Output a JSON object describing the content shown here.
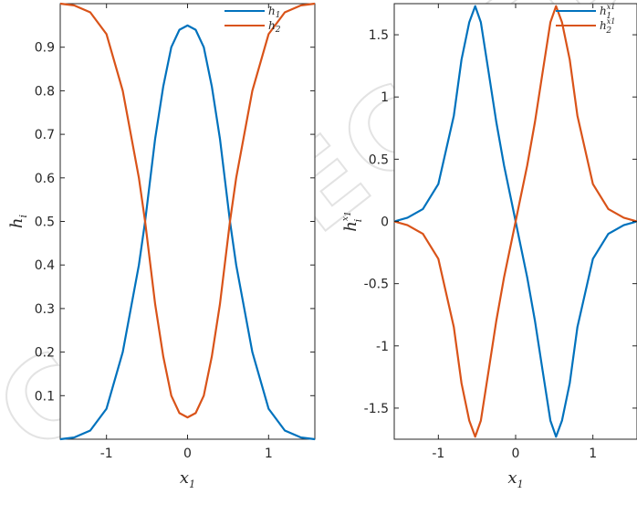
{
  "watermark": "CORRECTED",
  "colors": {
    "h1": "#0072BD",
    "h2": "#D95319",
    "axes": "#262626"
  },
  "chart_data": [
    {
      "type": "line",
      "title": "",
      "xlabel": {
        "base": "x",
        "sub": "1"
      },
      "ylabel": {
        "base": "h",
        "sub": "i"
      },
      "xlim": [
        -1.5708,
        1.5708
      ],
      "ylim": [
        0,
        1
      ],
      "xticks": [
        {
          "value": -1,
          "label": "-1"
        },
        {
          "value": 0,
          "label": "0"
        },
        {
          "value": 1,
          "label": "1"
        }
      ],
      "yticks": [
        {
          "value": 0.1,
          "label": "0.1"
        },
        {
          "value": 0.2,
          "label": "0.2"
        },
        {
          "value": 0.3,
          "label": "0.3"
        },
        {
          "value": 0.4,
          "label": "0.4"
        },
        {
          "value": 0.5,
          "label": "0.5"
        },
        {
          "value": 0.6,
          "label": "0.6"
        },
        {
          "value": 0.7,
          "label": "0.7"
        },
        {
          "value": 0.8,
          "label": "0.8"
        },
        {
          "value": 0.9,
          "label": "0.9"
        }
      ],
      "grid": false,
      "legend": "top-right",
      "x": [
        -1.5708,
        -1.4,
        -1.2,
        -1.0,
        -0.8,
        -0.6,
        -0.5236,
        -0.4,
        -0.3,
        -0.2,
        -0.1,
        0.0,
        0.1,
        0.2,
        0.3,
        0.4,
        0.5236,
        0.6,
        0.8,
        1.0,
        1.2,
        1.4,
        1.5708
      ],
      "series": [
        {
          "name": "h",
          "sub": "1",
          "sup": "",
          "color": "#0072BD",
          "values": [
            0.0,
            0.004,
            0.02,
            0.07,
            0.2,
            0.4,
            0.5,
            0.69,
            0.81,
            0.9,
            0.94,
            0.95,
            0.94,
            0.9,
            0.81,
            0.69,
            0.5,
            0.4,
            0.2,
            0.07,
            0.02,
            0.004,
            0.0
          ]
        },
        {
          "name": "h",
          "sub": "2",
          "sup": "",
          "color": "#D95319",
          "values": [
            1.0,
            0.996,
            0.98,
            0.93,
            0.8,
            0.6,
            0.5,
            0.31,
            0.19,
            0.1,
            0.06,
            0.05,
            0.06,
            0.1,
            0.19,
            0.31,
            0.5,
            0.6,
            0.8,
            0.93,
            0.98,
            0.996,
            1.0
          ]
        }
      ]
    },
    {
      "type": "line",
      "title": "",
      "xlabel": {
        "base": "x",
        "sub": "1"
      },
      "ylabel": {
        "base": "h",
        "sub": "i",
        "sup": "x",
        "supsub": "1"
      },
      "xlim": [
        -1.5708,
        1.5708
      ],
      "ylim": [
        -1.75,
        1.75
      ],
      "xticks": [
        {
          "value": -1,
          "label": "-1"
        },
        {
          "value": 0,
          "label": "0"
        },
        {
          "value": 1,
          "label": "1"
        }
      ],
      "yticks": [
        {
          "value": -1.5,
          "label": "-1.5"
        },
        {
          "value": -1,
          "label": "-1"
        },
        {
          "value": -0.5,
          "label": "-0.5"
        },
        {
          "value": 0,
          "label": "0"
        },
        {
          "value": 0.5,
          "label": "0.5"
        },
        {
          "value": 1,
          "label": "1"
        },
        {
          "value": 1.5,
          "label": "1.5"
        }
      ],
      "grid": false,
      "legend": "top-right",
      "x": [
        -1.5708,
        -1.4,
        -1.2,
        -1.0,
        -0.8,
        -0.7,
        -0.6,
        -0.5236,
        -0.45,
        -0.35,
        -0.25,
        -0.15,
        -0.05,
        0.0,
        0.05,
        0.15,
        0.25,
        0.35,
        0.45,
        0.5236,
        0.6,
        0.7,
        0.8,
        1.0,
        1.2,
        1.4,
        1.5708
      ],
      "series": [
        {
          "name": "h",
          "sub": "1",
          "sup": "x1",
          "color": "#0072BD",
          "values": [
            0.0,
            0.03,
            0.1,
            0.3,
            0.85,
            1.3,
            1.6,
            1.73,
            1.6,
            1.2,
            0.8,
            0.45,
            0.15,
            0.0,
            -0.15,
            -0.45,
            -0.8,
            -1.2,
            -1.6,
            -1.73,
            -1.6,
            -1.3,
            -0.85,
            -0.3,
            -0.1,
            -0.03,
            0.0
          ]
        },
        {
          "name": "h",
          "sub": "2",
          "sup": "x1",
          "color": "#D95319",
          "values": [
            0.0,
            -0.03,
            -0.1,
            -0.3,
            -0.85,
            -1.3,
            -1.6,
            -1.73,
            -1.6,
            -1.2,
            -0.8,
            -0.45,
            -0.15,
            0.0,
            0.15,
            0.45,
            0.8,
            1.2,
            1.6,
            1.73,
            1.6,
            1.3,
            0.85,
            0.3,
            0.1,
            0.03,
            0.0
          ]
        }
      ]
    }
  ]
}
